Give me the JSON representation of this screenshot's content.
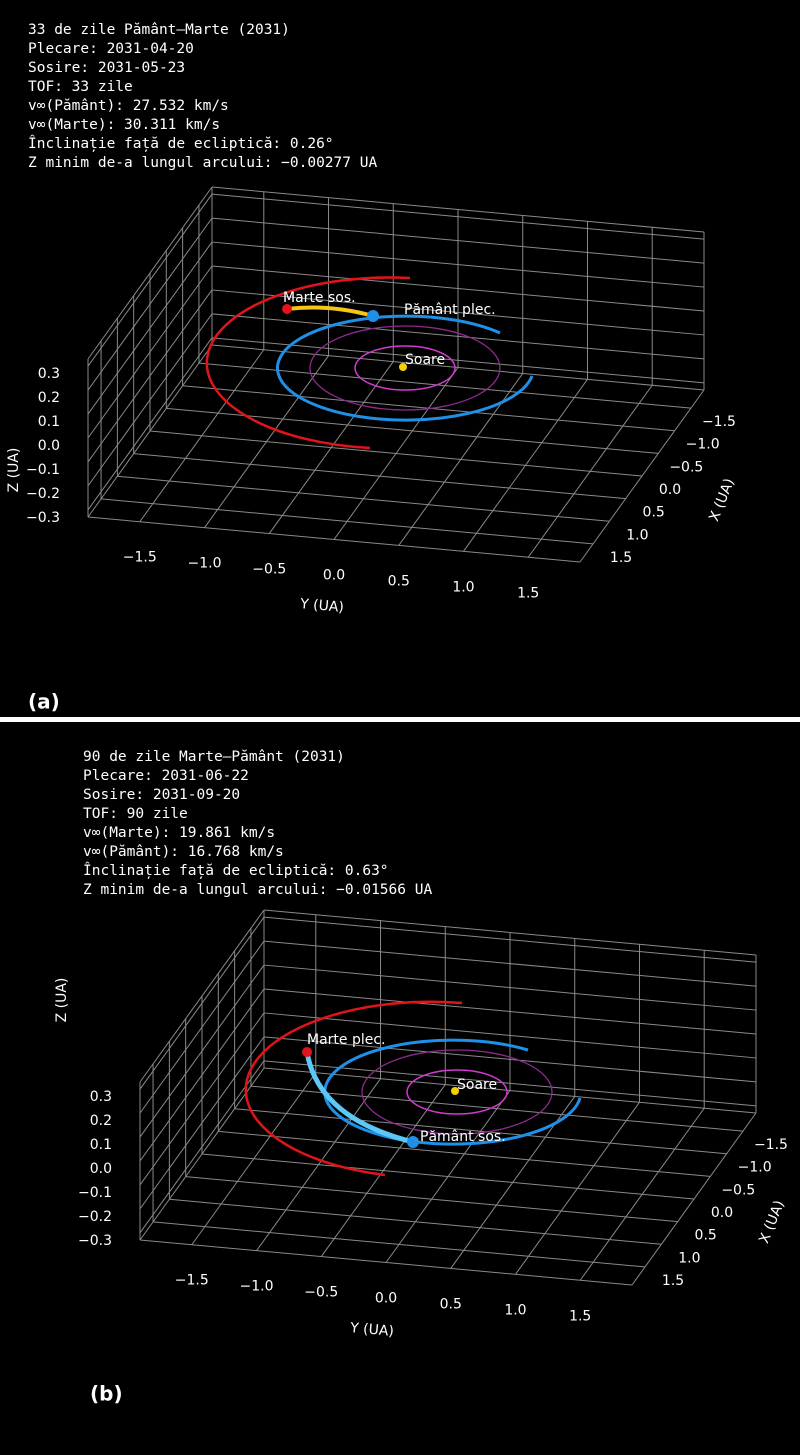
{
  "chart_data": [
    {
      "type": "orbit3d",
      "text_lines": [
        "33 de zile Pământ–Marte (2031)",
        "Plecare: 2031-04-20",
        "Sosire:  2031-05-23",
        "TOF: 33 zile",
        "v∞(Pământ):  27.532 km/s",
        "v∞(Marte):   30.311 km/s",
        "Înclinație față de ecliptică: 0.26°",
        "Z minim de-a lungul arcului: −0.00277 UA"
      ],
      "annotations": [
        "Marte sos.",
        "Pământ plec.",
        "Soare"
      ],
      "panel_label": "(a)",
      "xlabel": "X (UA)",
      "ylabel": "Y (UA)",
      "zlabel": "Z (UA)",
      "xlim": [
        -1.9,
        1.9
      ],
      "ylim": [
        -1.9,
        1.9
      ],
      "zlim": [
        -0.33,
        0.33
      ],
      "xticks": [
        {
          "value": -1.5,
          "label": "−1.5"
        },
        {
          "value": -1,
          "label": "−1.0"
        },
        {
          "value": -0.5,
          "label": "−0.5"
        },
        {
          "value": 0,
          "label": "0.0"
        },
        0.5,
        {
          "value": 1,
          "label": "1.0"
        },
        1.5
      ],
      "yticks": [
        {
          "value": -1.5,
          "label": "−1.5"
        },
        {
          "value": -1,
          "label": "−1.0"
        },
        {
          "value": -0.5,
          "label": "−0.5"
        },
        {
          "value": 0,
          "label": "0.0"
        },
        0.5,
        {
          "value": 1,
          "label": "1.0"
        },
        1.5
      ],
      "zticks": [
        0.3,
        0.2,
        0.1,
        {
          "value": 0,
          "label": "0.0"
        },
        {
          "value": -0.1,
          "label": "−0.1"
        },
        {
          "value": -0.2,
          "label": "−0.2"
        },
        {
          "value": -0.3,
          "label": "−0.3"
        }
      ],
      "grid": true
    },
    {
      "type": "orbit3d",
      "text_lines": [
        "90 de zile Marte–Pământ (2031)",
        "Plecare: 2031-06-22",
        "Sosire: 2031-09-20",
        "TOF: 90 zile",
        "v∞(Marte):  19.861 km/s",
        "v∞(Pământ):  16.768 km/s",
        "Înclinație față de ecliptică: 0.63°",
        "Z minim de-a lungul arcului: −0.01566 UA"
      ],
      "annotations": [
        "Marte plec.",
        "Pământ sos.",
        "Soare"
      ],
      "panel_label": "(b)",
      "xlabel": "X (UA)",
      "ylabel": "Y (UA)",
      "zlabel": "Z (UA)",
      "xlim": [
        -1.9,
        1.9
      ],
      "ylim": [
        -1.9,
        1.9
      ],
      "zlim": [
        -0.33,
        0.33
      ],
      "xticks": [
        {
          "value": -1.5,
          "label": "−1.5"
        },
        {
          "value": -1,
          "label": "−1.0"
        },
        {
          "value": -0.5,
          "label": "−0.5"
        },
        {
          "value": 0,
          "label": "0.0"
        },
        0.5,
        {
          "value": 1,
          "label": "1.0"
        },
        1.5
      ],
      "yticks": [
        {
          "value": -1.5,
          "label": "−1.5"
        },
        {
          "value": -1,
          "label": "−1.0"
        },
        {
          "value": -0.5,
          "label": "−0.5"
        },
        {
          "value": 0,
          "label": "0.0"
        },
        0.5,
        {
          "value": 1,
          "label": "1.0"
        },
        1.5
      ],
      "zticks": [
        0.3,
        0.2,
        0.1,
        {
          "value": 0,
          "label": "0.0"
        },
        {
          "value": -0.1,
          "label": "−0.1"
        },
        {
          "value": -0.2,
          "label": "−0.2"
        },
        {
          "value": -0.3,
          "label": "−0.3"
        }
      ],
      "grid": true
    }
  ]
}
